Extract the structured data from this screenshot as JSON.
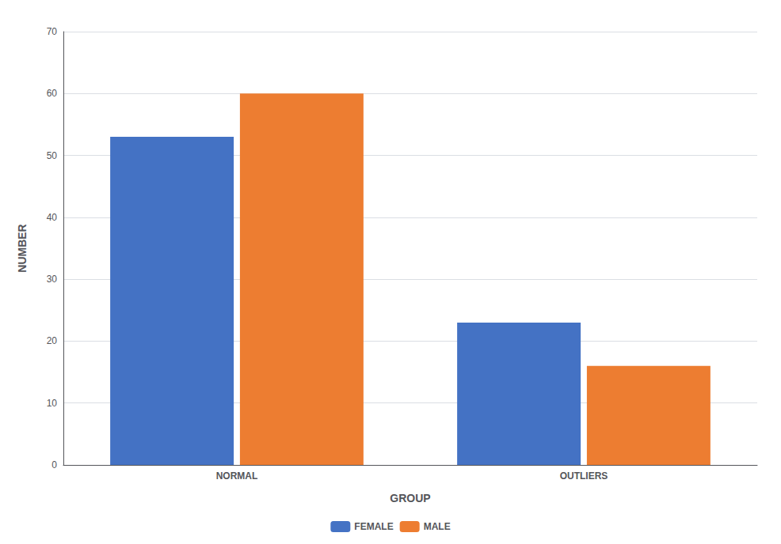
{
  "chart_data": {
    "type": "bar",
    "categories": [
      "NORMAL",
      "OUTLIERS"
    ],
    "series": [
      {
        "name": "FEMALE",
        "color": "#4472C4",
        "values": [
          53,
          23
        ]
      },
      {
        "name": "MALE",
        "color": "#ED7D31",
        "values": [
          60,
          16
        ]
      }
    ],
    "xlabel": "GROUP",
    "ylabel": "NUMBER",
    "ylim": [
      0,
      70
    ],
    "yticks": [
      0,
      10,
      20,
      30,
      40,
      50,
      60,
      70
    ],
    "grid": true,
    "legend": "bottom"
  }
}
